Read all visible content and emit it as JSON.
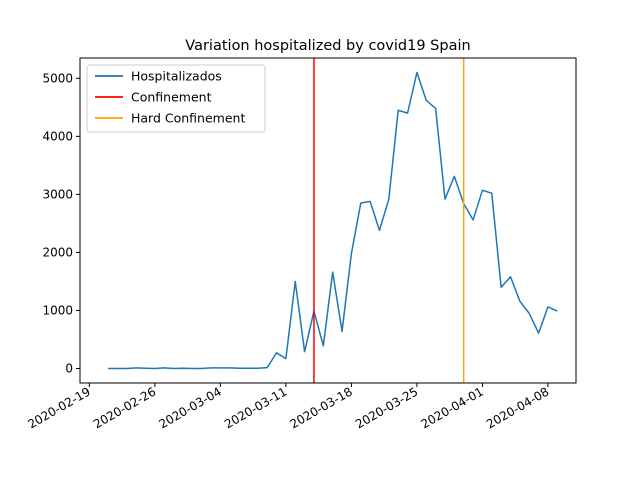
{
  "chart_data": {
    "type": "line",
    "title": "Variation hospitalized by covid19 Spain",
    "xlabel": "",
    "ylabel": "",
    "x_type": "date",
    "xlim": [
      "2020-02-18",
      "2020-04-11"
    ],
    "ylim": [
      -250,
      5350
    ],
    "x_ticks": [
      "2020-02-19",
      "2020-02-26",
      "2020-03-04",
      "2020-03-11",
      "2020-03-18",
      "2020-03-25",
      "2020-04-01",
      "2020-04-08"
    ],
    "y_ticks": [
      0,
      1000,
      2000,
      3000,
      4000,
      5000
    ],
    "grid": false,
    "legend_position": "top-left",
    "series": [
      {
        "name": "Hospitalizados",
        "color": "#1f77b4",
        "x": [
          "2020-02-21",
          "2020-02-22",
          "2020-02-23",
          "2020-02-24",
          "2020-02-25",
          "2020-02-26",
          "2020-02-27",
          "2020-02-28",
          "2020-02-29",
          "2020-03-01",
          "2020-03-02",
          "2020-03-03",
          "2020-03-04",
          "2020-03-05",
          "2020-03-06",
          "2020-03-07",
          "2020-03-08",
          "2020-03-09",
          "2020-03-10",
          "2020-03-11",
          "2020-03-12",
          "2020-03-13",
          "2020-03-14",
          "2020-03-15",
          "2020-03-16",
          "2020-03-17",
          "2020-03-18",
          "2020-03-19",
          "2020-03-20",
          "2020-03-21",
          "2020-03-22",
          "2020-03-23",
          "2020-03-24",
          "2020-03-25",
          "2020-03-26",
          "2020-03-27",
          "2020-03-28",
          "2020-03-29",
          "2020-03-30",
          "2020-03-31",
          "2020-04-01",
          "2020-04-02",
          "2020-04-03",
          "2020-04-04",
          "2020-04-05",
          "2020-04-06",
          "2020-04-07",
          "2020-04-08",
          "2020-04-09"
        ],
        "values": [
          0,
          0,
          0,
          10,
          5,
          0,
          10,
          0,
          5,
          0,
          0,
          10,
          10,
          10,
          5,
          5,
          5,
          15,
          270,
          170,
          1500,
          290,
          990,
          390,
          1660,
          640,
          1980,
          2850,
          2880,
          2380,
          2920,
          4450,
          4400,
          5100,
          4620,
          4480,
          2920,
          3310,
          2840,
          2560,
          3070,
          3020,
          1400,
          1580,
          1160,
          950,
          610,
          1060,
          990
        ]
      }
    ],
    "vertical_lines": [
      {
        "name": "Confinement",
        "x": "2020-03-14",
        "color": "#ff0000"
      },
      {
        "name": "Hard Confinement",
        "x": "2020-03-30",
        "color": "#ffa500"
      }
    ]
  }
}
